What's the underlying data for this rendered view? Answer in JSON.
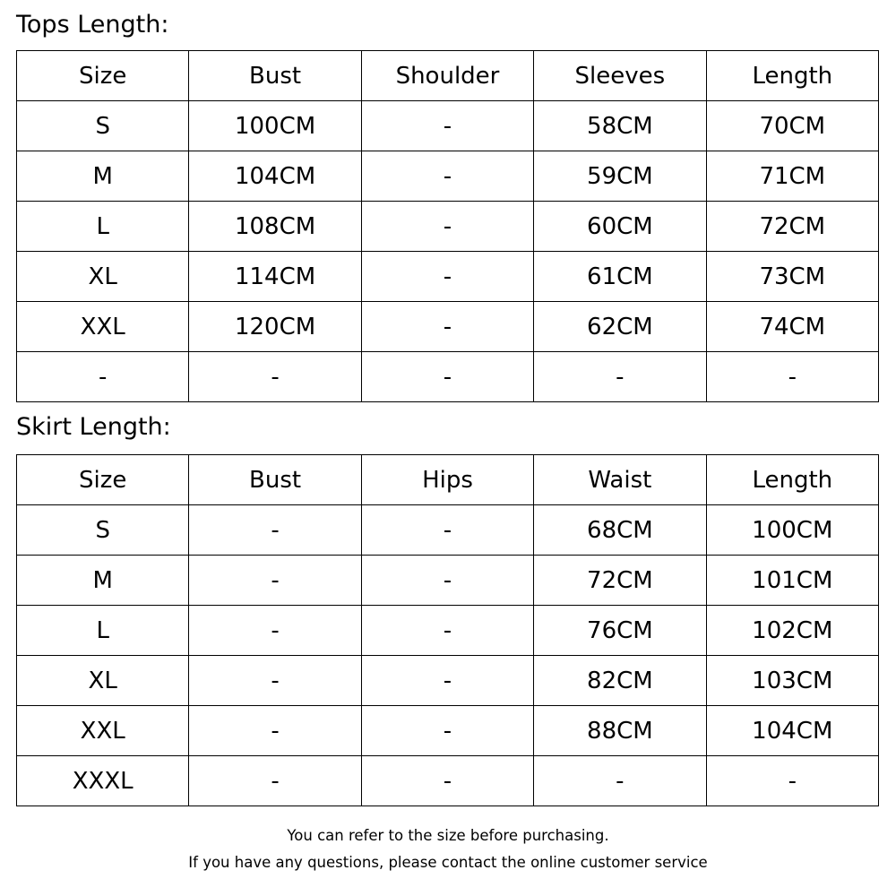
{
  "tops": {
    "title": "Tops Length:",
    "headers": [
      "Size",
      "Bust",
      "Shoulder",
      "Sleeves",
      "Length"
    ],
    "rows": [
      [
        "S",
        "100CM",
        "-",
        "58CM",
        "70CM"
      ],
      [
        "M",
        "104CM",
        "-",
        "59CM",
        "71CM"
      ],
      [
        "L",
        "108CM",
        "-",
        "60CM",
        "72CM"
      ],
      [
        "XL",
        "114CM",
        "-",
        "61CM",
        "73CM"
      ],
      [
        "XXL",
        "120CM",
        "-",
        "62CM",
        "74CM"
      ],
      [
        "-",
        "-",
        "-",
        "-",
        "-"
      ]
    ]
  },
  "skirt": {
    "title": "Skirt Length:",
    "headers": [
      "Size",
      "Bust",
      "Hips",
      "Waist",
      "Length"
    ],
    "rows": [
      [
        "S",
        "-",
        "-",
        "68CM",
        "100CM"
      ],
      [
        "M",
        "-",
        "-",
        "72CM",
        "101CM"
      ],
      [
        "L",
        "-",
        "-",
        "76CM",
        "102CM"
      ],
      [
        "XL",
        "-",
        "-",
        "82CM",
        "103CM"
      ],
      [
        "XXL",
        "-",
        "-",
        "88CM",
        "104CM"
      ],
      [
        "XXXL",
        "-",
        "-",
        "-",
        "-"
      ]
    ]
  },
  "footer": {
    "line1": "You can refer to the size before purchasing.",
    "line2": "If you have any questions, please contact the online customer service"
  }
}
